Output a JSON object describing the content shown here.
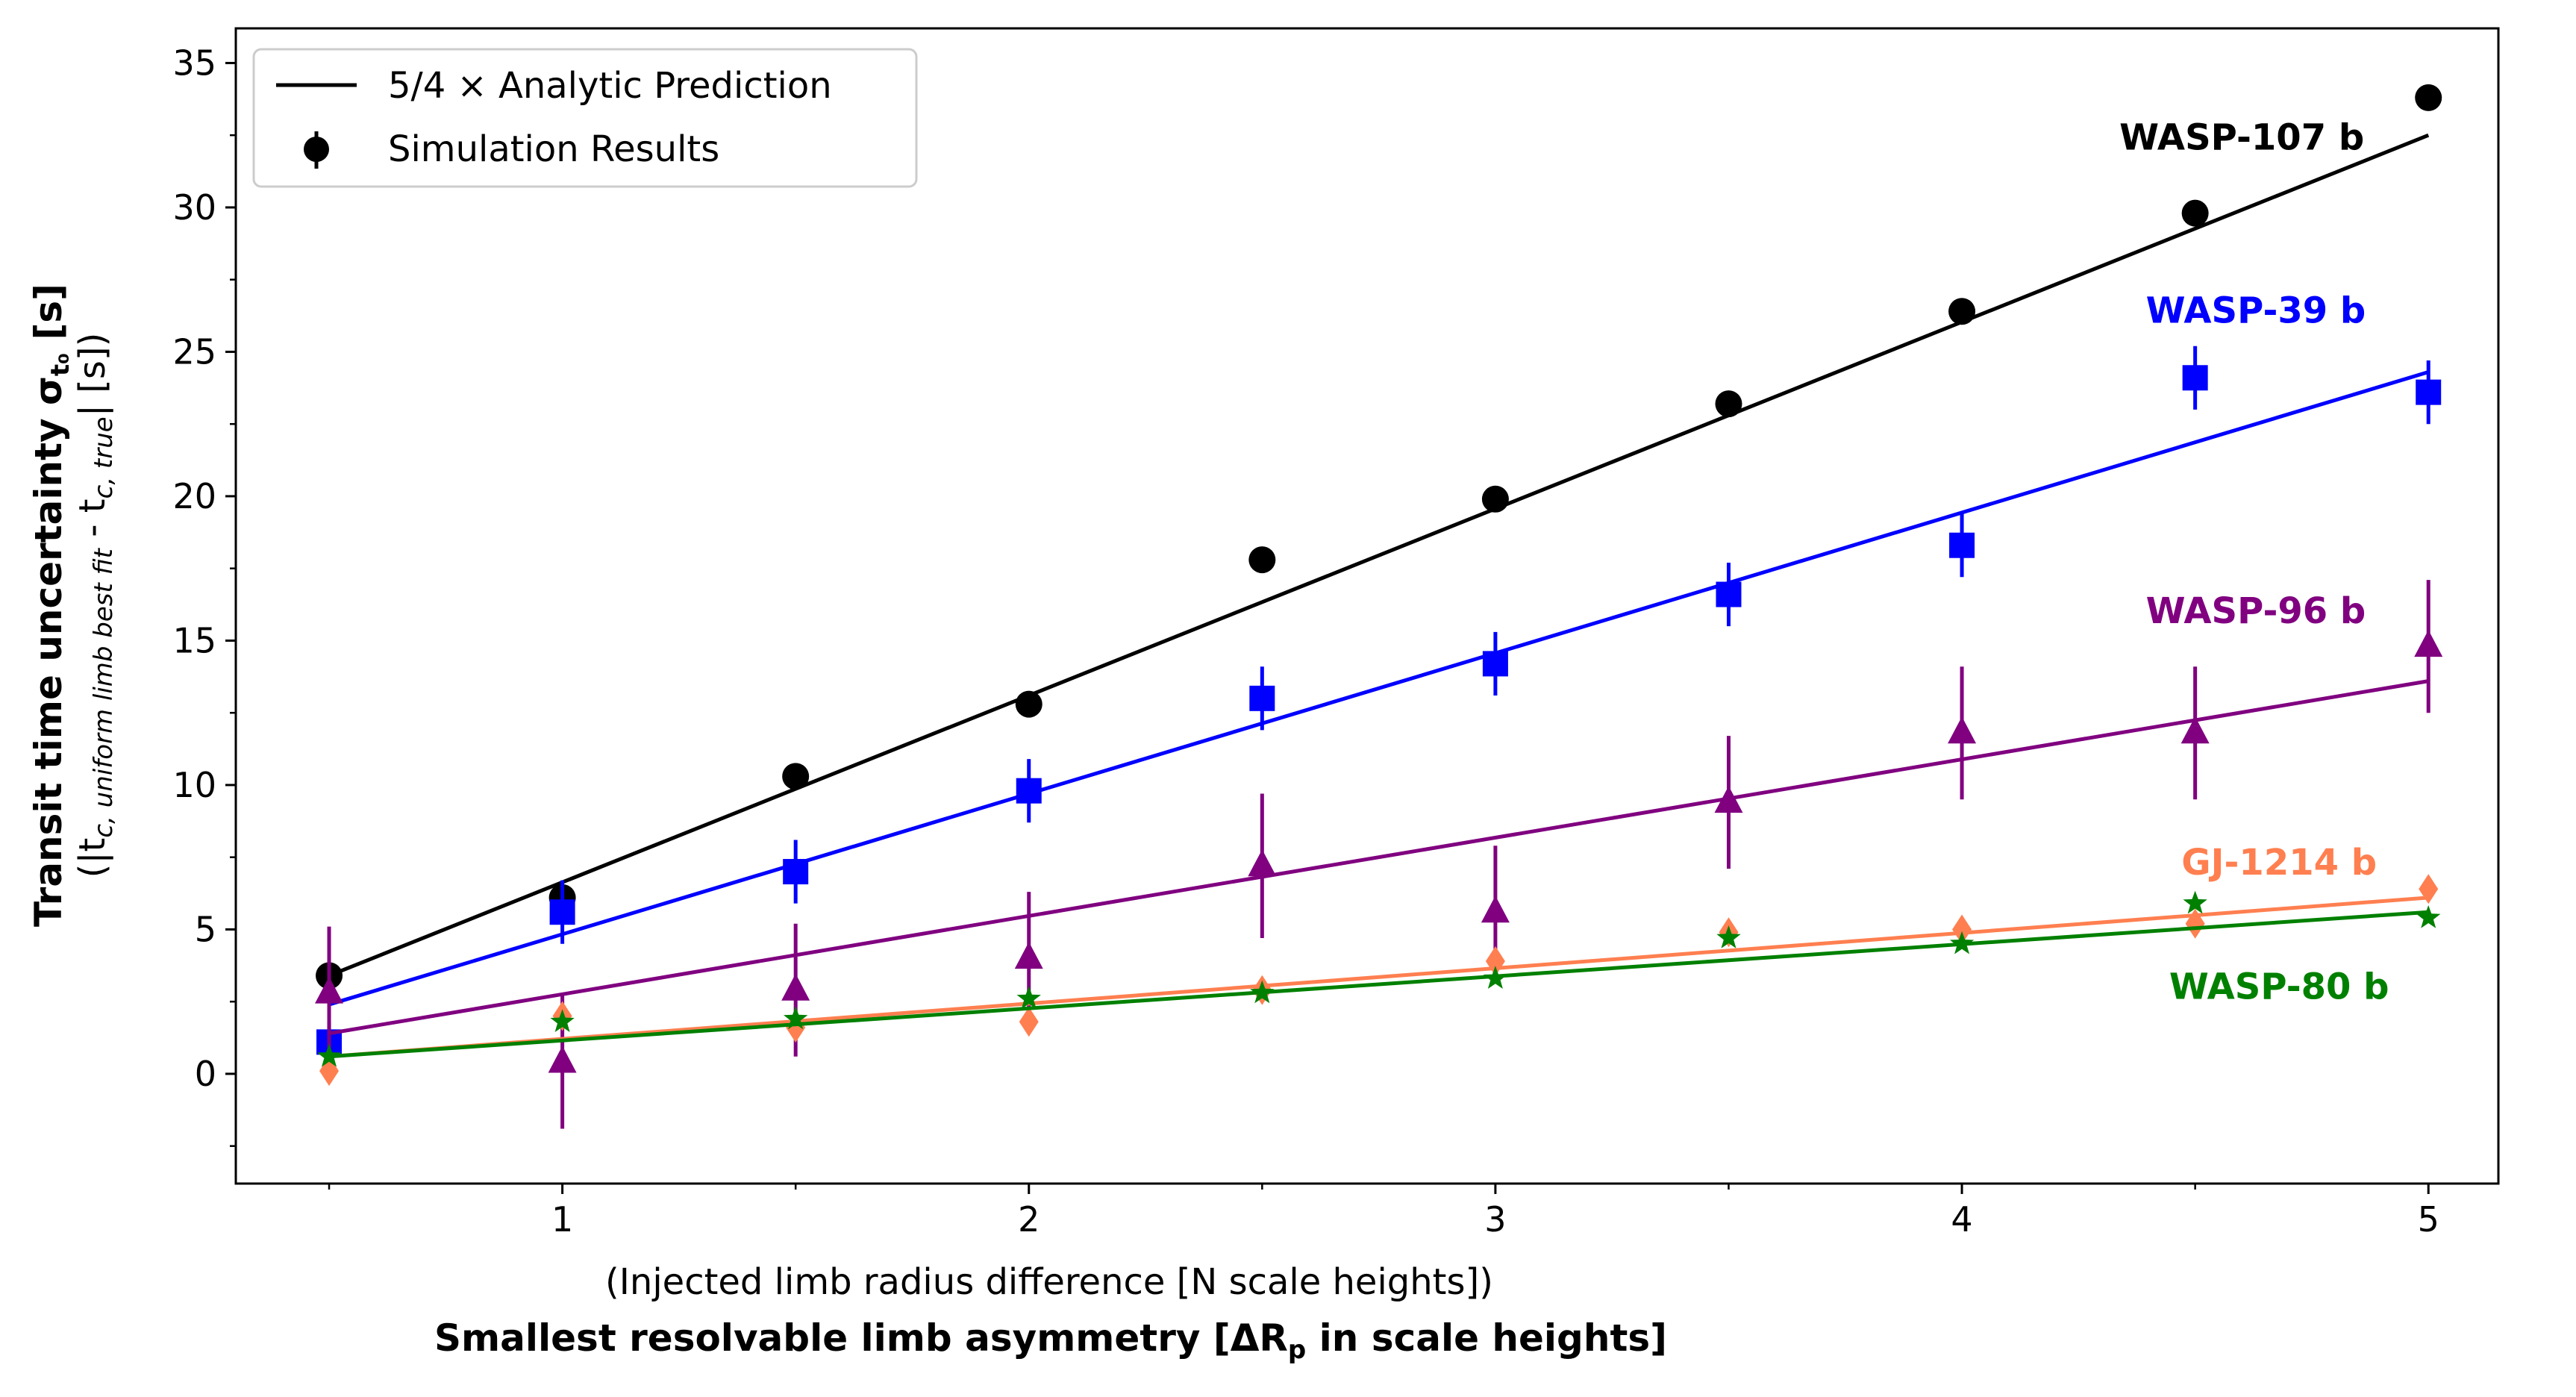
{
  "chart_data": {
    "type": "line",
    "xlim": [
      0.3,
      5.15
    ],
    "ylim": [
      -3.8,
      36.2
    ],
    "xticks": [
      1,
      2,
      3,
      4,
      5
    ],
    "xminor": [
      0.5,
      1.5,
      2.5,
      3.5,
      4.5
    ],
    "yticks": [
      0,
      5,
      10,
      15,
      20,
      25,
      30,
      35
    ],
    "yminor": [
      -2.5,
      2.5,
      7.5,
      12.5,
      17.5,
      22.5,
      27.5,
      32.5
    ],
    "xlabel_top": "(Injected limb radius difference [N scale heights])",
    "xlabel_bottom": "Smallest resolvable limb asymmetry [ΔR",
    "xlabel_bottom_sub": "p",
    "xlabel_bottom_end": " in scale heights]",
    "ylabel_main": "Transit time uncertainty σ",
    "ylabel_main_sub": "t₀",
    "ylabel_main_end": " [s]",
    "ylabel_second_open": "(|t",
    "ylabel_second_sub1": "c, uniform limb best fit",
    "ylabel_second_mid": " - t",
    "ylabel_second_sub2": "c, true",
    "ylabel_second_close": "| [s])",
    "legend": {
      "position": "upper-left",
      "line_label": "5/4 × Analytic Prediction",
      "points_label": "Simulation Results"
    },
    "x": [
      0.5,
      1.0,
      1.5,
      2.0,
      2.5,
      3.0,
      3.5,
      4.0,
      4.5,
      5.0
    ],
    "series": [
      {
        "name": "WASP-107 b",
        "color": "#000000",
        "marker": "circle",
        "line": [
          [
            0.5,
            3.4
          ],
          [
            5.0,
            32.5
          ]
        ],
        "values": [
          3.4,
          6.1,
          10.3,
          12.8,
          17.8,
          19.9,
          23.2,
          26.4,
          29.8,
          33.8
        ],
        "errors": [
          0.3,
          0.4,
          0.4,
          0.4,
          0.4,
          0.4,
          0.4,
          0.4,
          0.4,
          0.4
        ]
      },
      {
        "name": "WASP-39 b",
        "color": "#0000ff",
        "marker": "square",
        "line": [
          [
            0.5,
            2.4
          ],
          [
            5.0,
            24.3
          ]
        ],
        "values": [
          1.1,
          5.6,
          7.0,
          9.8,
          13.0,
          14.2,
          16.6,
          18.3,
          24.1,
          23.6
        ],
        "errors": [
          0.7,
          1.1,
          1.1,
          1.1,
          1.1,
          1.1,
          1.1,
          1.1,
          1.1,
          1.1
        ]
      },
      {
        "name": "WASP-96 b",
        "color": "#800080",
        "marker": "triangle",
        "line": [
          [
            0.5,
            1.4
          ],
          [
            5.0,
            13.6
          ]
        ],
        "values": [
          2.8,
          0.4,
          2.9,
          4.0,
          7.2,
          5.6,
          9.4,
          11.8,
          11.8,
          14.8
        ],
        "errors": [
          2.3,
          2.3,
          2.3,
          2.3,
          2.5,
          2.3,
          2.3,
          2.3,
          2.3,
          2.3
        ]
      },
      {
        "name": "GJ-1214 b",
        "color": "#ff7f50",
        "marker": "diamond",
        "line": [
          [
            0.5,
            0.6
          ],
          [
            5.0,
            6.1
          ]
        ],
        "values": [
          0.1,
          2.0,
          1.6,
          1.8,
          2.9,
          3.9,
          4.9,
          5.0,
          5.2,
          6.4
        ],
        "errors": [
          0.2,
          0.2,
          0.2,
          0.2,
          0.2,
          0.2,
          0.2,
          0.2,
          0.2,
          0.2
        ]
      },
      {
        "name": "WASP-80 b",
        "color": "#008000",
        "marker": "star",
        "line": [
          [
            0.5,
            0.6
          ],
          [
            5.0,
            5.6
          ]
        ],
        "values": [
          0.6,
          1.8,
          1.9,
          2.6,
          2.8,
          3.3,
          4.7,
          4.5,
          5.9,
          5.4
        ],
        "errors": [
          0.1,
          0.1,
          0.1,
          0.1,
          0.1,
          0.1,
          0.1,
          0.1,
          0.1,
          0.1
        ]
      }
    ],
    "annotations": [
      {
        "text": "WASP-107 b",
        "series": "WASP-107 b",
        "x": 4.6,
        "y": 32.0
      },
      {
        "text": "WASP-39 b",
        "series": "WASP-39 b",
        "x": 4.63,
        "y": 26.0
      },
      {
        "text": "WASP-96 b",
        "series": "WASP-96 b",
        "x": 4.63,
        "y": 15.6
      },
      {
        "text": "GJ-1214 b",
        "series": "GJ-1214 b",
        "x": 4.68,
        "y": 6.9
      },
      {
        "text": "WASP-80 b",
        "series": "WASP-80 b",
        "x": 4.68,
        "y": 2.6
      }
    ]
  }
}
